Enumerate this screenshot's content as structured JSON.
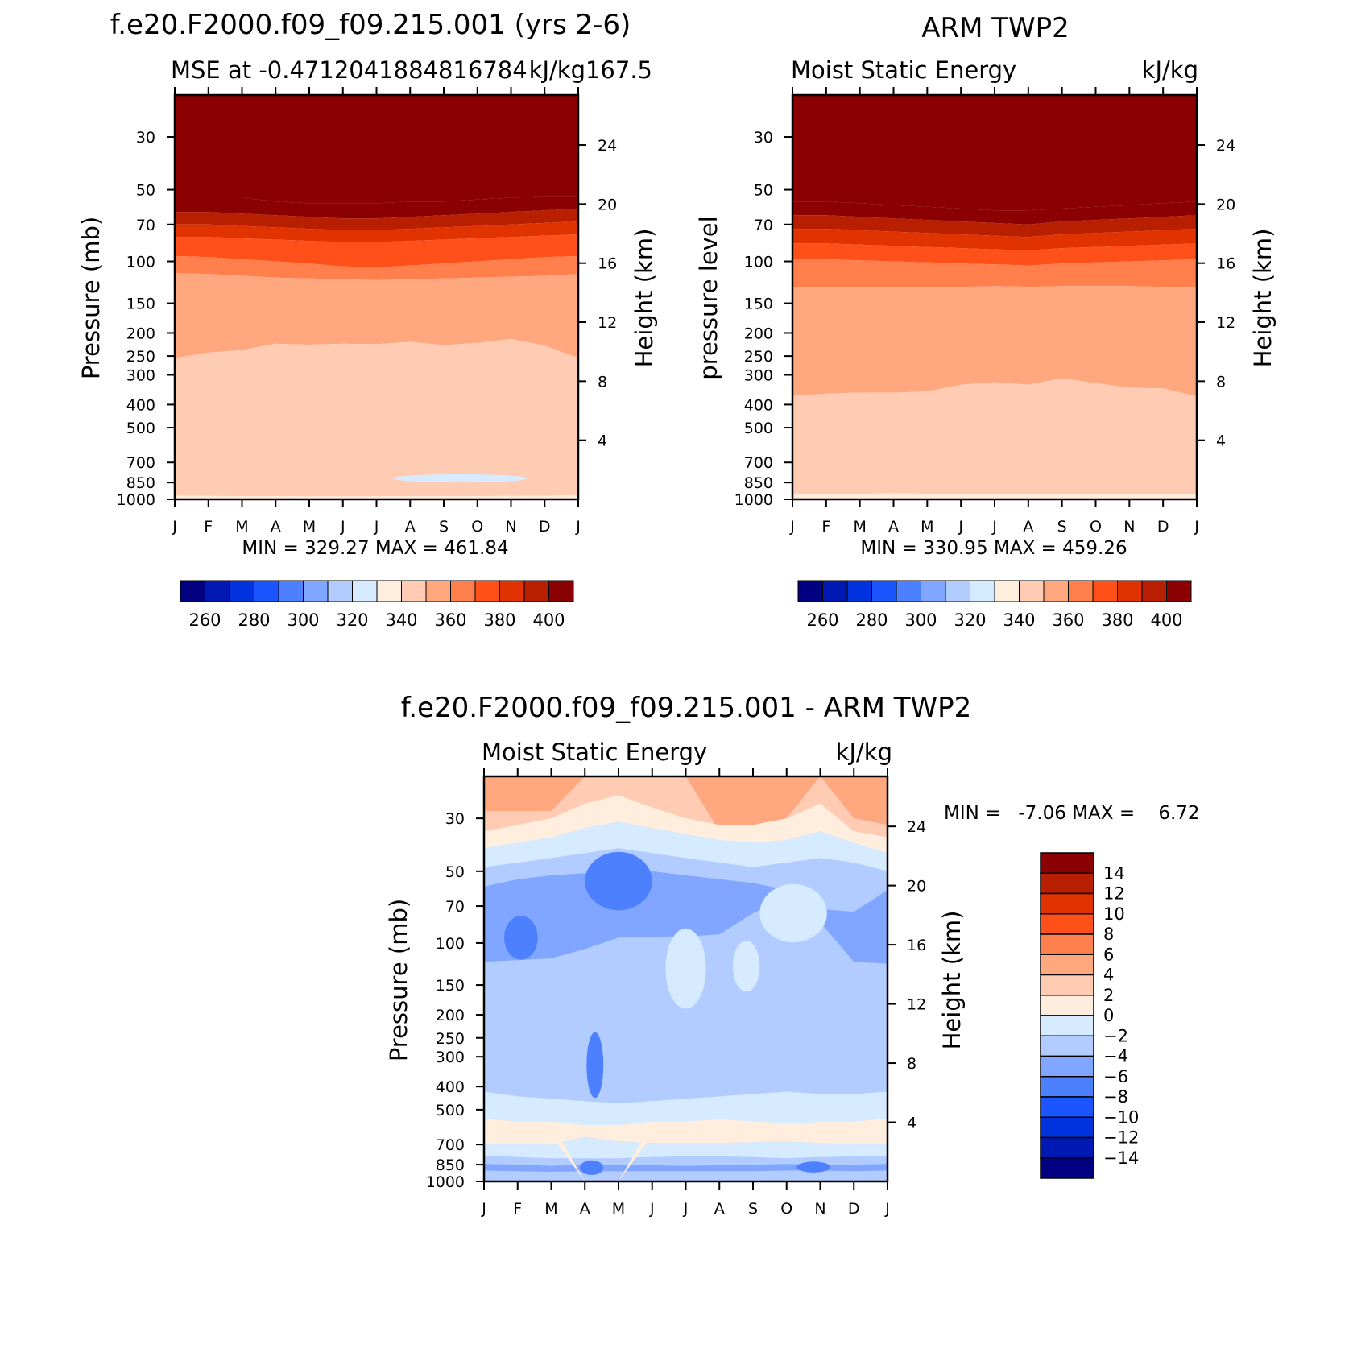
{
  "colors": {
    "seq_lut": [
      "#000080",
      "#0019b3",
      "#0033dd",
      "#1a55ff",
      "#4d80ff",
      "#80a6ff",
      "#b3ccff",
      "#d6ebff",
      "#ffeedd",
      "#ffccb3",
      "#ffa880",
      "#ff7f4d",
      "#ff501a",
      "#e03300",
      "#b81e00",
      "#8b0000"
    ],
    "diff_lut": [
      "#000080",
      "#0019b3",
      "#0033dd",
      "#1a55ff",
      "#4d80ff",
      "#80a6ff",
      "#b3ccff",
      "#d6ebff",
      "#ffeedd",
      "#ffccb3",
      "#ffa880",
      "#ff7f4d",
      "#ff501a",
      "#e03300",
      "#b81e00",
      "#8b0000"
    ]
  },
  "bottom": {
    "title": "f.e20.F2000.f09_f09.215.001 - ARM TWP2"
  },
  "chart_data": [
    {
      "type": "heatmap",
      "id": "model",
      "title": "f.e20.F2000.f09_f09.215.001 (yrs 2-6)",
      "subtitle_left": "MSE at -0.4712041884816784",
      "subtitle_right_overlap": "kJ/kg167.5",
      "ylabel": "Pressure (mb)",
      "y2label": "Height (km)",
      "months": [
        "J",
        "F",
        "M",
        "A",
        "M",
        "J",
        "J",
        "A",
        "S",
        "O",
        "N",
        "D",
        "J"
      ],
      "p_ticks": [
        30,
        50,
        70,
        100,
        150,
        200,
        250,
        300,
        400,
        500,
        700,
        850,
        1000
      ],
      "height_ticks": [
        24,
        20,
        16,
        12,
        8,
        4
      ],
      "stats": "MIN = 329.27 MAX = 461.84",
      "colorbar_labels": [
        "260",
        "280",
        "300",
        "320",
        "340",
        "360",
        "380",
        "400"
      ],
      "contour_levels": [
        250,
        260,
        270,
        280,
        290,
        300,
        310,
        320,
        330,
        340,
        350,
        360,
        370,
        380,
        390,
        400
      ],
      "boundaries": {
        "400": [
          54,
          54,
          54,
          56,
          57,
          57,
          57,
          56,
          56,
          55,
          54,
          53,
          53
        ],
        "390": [
          62,
          62,
          63,
          64,
          65,
          66,
          66,
          65,
          64,
          63,
          62,
          61,
          60
        ],
        "380": [
          70,
          70,
          71,
          72,
          73,
          74,
          74,
          73,
          72,
          71,
          70,
          69,
          68
        ],
        "370": [
          79,
          79,
          80,
          81,
          82,
          83,
          83,
          82,
          81,
          80,
          79,
          78,
          77
        ],
        "360": [
          95,
          96,
          98,
          100,
          102,
          105,
          106,
          104,
          102,
          100,
          98,
          96,
          95
        ],
        "350": [
          112,
          113,
          115,
          117,
          118,
          119,
          120,
          119,
          118,
          117,
          116,
          115,
          113
        ],
        "340": [
          255,
          242,
          236,
          222,
          224,
          222,
          223,
          218,
          225,
          220,
          212,
          226,
          255
        ],
        "330": [
          965,
          968,
          970,
          970,
          972,
          972,
          972,
          970,
          970,
          970,
          968,
          966,
          960
        ]
      },
      "patches": [
        {
          "level": 320,
          "month_range": [
            6.5,
            10.5
          ],
          "p_range": [
            785,
            850
          ]
        }
      ]
    },
    {
      "type": "heatmap",
      "id": "obs",
      "title": "ARM TWP2",
      "subtitle_left": "Moist Static Energy",
      "subtitle_right": "kJ/kg",
      "ylabel": "pressure level",
      "y2label": "Height (km)",
      "months": [
        "J",
        "F",
        "M",
        "A",
        "M",
        "J",
        "J",
        "A",
        "S",
        "O",
        "N",
        "D",
        "J"
      ],
      "p_ticks": [
        30,
        50,
        70,
        100,
        150,
        200,
        250,
        300,
        400,
        500,
        700,
        850,
        1000
      ],
      "height_ticks": [
        24,
        20,
        16,
        12,
        8,
        4
      ],
      "stats": "MIN = 330.95 MAX = 459.26",
      "colorbar_labels": [
        "260",
        "280",
        "300",
        "320",
        "340",
        "360",
        "380",
        "400"
      ],
      "contour_levels": [
        250,
        260,
        270,
        280,
        290,
        300,
        310,
        320,
        330,
        340,
        350,
        360,
        370,
        380,
        390,
        400
      ],
      "boundaries": {
        "400": [
          56,
          56,
          57,
          58,
          59,
          60,
          61,
          61,
          60,
          59,
          58,
          57,
          56
        ],
        "390": [
          64,
          64,
          65,
          66,
          67,
          68,
          69,
          70,
          68,
          67,
          66,
          65,
          64
        ],
        "380": [
          73,
          73,
          74,
          75,
          76,
          77,
          78,
          79,
          77,
          76,
          75,
          74,
          73
        ],
        "370": [
          84,
          84,
          85,
          86,
          87,
          88,
          89,
          90,
          88,
          87,
          86,
          85,
          84
        ],
        "360": [
          98,
          98,
          99,
          100,
          101,
          102,
          103,
          104,
          102,
          101,
          100,
          99,
          98
        ],
        "350": [
          128,
          128,
          128,
          128,
          128,
          128,
          127,
          128,
          127,
          127,
          127,
          128,
          128
        ],
        "340": [
          368,
          360,
          356,
          357,
          352,
          330,
          322,
          330,
          310,
          325,
          340,
          342,
          370
        ],
        "330": [
          955,
          950,
          948,
          945,
          948,
          950,
          950,
          950,
          950,
          950,
          950,
          948,
          955
        ]
      },
      "patches": []
    },
    {
      "type": "heatmap",
      "id": "difference",
      "title": "f.e20.F2000.f09_f09.215.001 - ARM TWP2",
      "subtitle_left": "Moist Static Energy",
      "subtitle_right": "kJ/kg",
      "ylabel": "Pressure (mb)",
      "y2label": "Height (km)",
      "months": [
        "J",
        "F",
        "M",
        "A",
        "M",
        "J",
        "J",
        "A",
        "S",
        "O",
        "N",
        "D",
        "J"
      ],
      "p_ticks": [
        30,
        50,
        70,
        100,
        150,
        200,
        250,
        300,
        400,
        500,
        700,
        850,
        1000
      ],
      "height_ticks": [
        24,
        20,
        16,
        12,
        8,
        4
      ],
      "stats_label": "MIN =   -7.06 MAX =    6.72",
      "colorbar_labels": [
        "14",
        "12",
        "10",
        "8",
        "6",
        "4",
        "2",
        "0",
        "-2",
        "-4",
        "-6",
        "-8",
        "-10",
        "-12",
        "-14"
      ],
      "background_level": -4,
      "bands": [
        {
          "level": 4,
          "top": [
            20,
            20,
            20,
            20,
            20,
            20,
            20,
            20,
            20,
            20,
            20,
            20,
            20
          ],
          "bottom": [
            28,
            28,
            28,
            20,
            20,
            20,
            20,
            34,
            34,
            30,
            20,
            30,
            32
          ]
        },
        {
          "level": 2,
          "top": [
            28,
            28,
            28,
            20,
            20,
            20,
            20,
            34,
            34,
            30,
            20,
            30,
            32
          ],
          "bottom": [
            34,
            32,
            30,
            26,
            24,
            27,
            30,
            32,
            32,
            30,
            26,
            34,
            36
          ]
        },
        {
          "level": 0,
          "top": [
            34,
            32,
            30,
            26,
            24,
            27,
            30,
            32,
            32,
            30,
            26,
            34,
            36
          ],
          "bottom": [
            40,
            38,
            36,
            33,
            31,
            33,
            35,
            37,
            38,
            37,
            34,
            38,
            42
          ]
        },
        {
          "level": -2,
          "top": [
            40,
            38,
            36,
            33,
            31,
            33,
            35,
            37,
            38,
            37,
            34,
            38,
            42
          ],
          "bottom": [
            48,
            46,
            44,
            42,
            40,
            42,
            44,
            46,
            48,
            46,
            44,
            46,
            50
          ]
        },
        {
          "level": -6,
          "top": [
            58,
            54,
            52,
            51,
            50,
            50,
            52,
            54,
            56,
            60,
            72,
            74,
            60
          ],
          "bottom": [
            120,
            118,
            116,
            106,
            95,
            95,
            94,
            92,
            75,
            65,
            82,
            120,
            122
          ]
        },
        {
          "level": 0,
          "top": [
            545,
            560,
            560,
            580,
            580,
            560,
            560,
            560,
            560,
            580,
            560,
            560,
            545
          ],
          "bottom": [
            700,
            700,
            700,
            650,
            680,
            690,
            690,
            690,
            685,
            680,
            690,
            700,
            700
          ]
        },
        {
          "level": -2,
          "top": [
            420,
            440,
            450,
            460,
            470,
            460,
            450,
            440,
            430,
            420,
            430,
            430,
            420
          ],
          "bottom": [
            545,
            560,
            560,
            580,
            580,
            560,
            560,
            560,
            560,
            580,
            560,
            560,
            545
          ]
        },
        {
          "level": -2,
          "top": [
            700,
            700,
            700,
            650,
            680,
            690,
            690,
            690,
            685,
            680,
            690,
            700,
            700
          ],
          "bottom": [
            780,
            790,
            800,
            800,
            800,
            790,
            785,
            785,
            790,
            800,
            790,
            785,
            780
          ]
        },
        {
          "level": -4,
          "top": [
            780,
            790,
            800,
            800,
            800,
            790,
            785,
            785,
            790,
            800,
            790,
            785,
            780
          ],
          "bottom": [
            1000,
            1000,
            1000,
            1000,
            1000,
            1000,
            1000,
            1000,
            1000,
            1000,
            1000,
            1000,
            1000
          ]
        },
        {
          "level": -6,
          "top": [
            845,
            850,
            860,
            850,
            850,
            855,
            860,
            855,
            850,
            845,
            850,
            850,
            845
          ],
          "bottom": [
            900,
            905,
            910,
            905,
            905,
            905,
            905,
            905,
            905,
            900,
            900,
            905,
            900
          ]
        },
        {
          "level": 0,
          "top": [
            555,
            560,
            568,
            1000,
            1000,
            570,
            560,
            550,
            560,
            570,
            570,
            560,
            555
          ],
          "bottom": [
            660,
            650,
            640,
            1000,
            1000,
            640,
            650,
            655,
            650,
            640,
            640,
            650,
            660
          ]
        }
      ],
      "patches": [
        {
          "level": -8,
          "month": 4,
          "month_half": 1.0,
          "p_center": 55,
          "p_half": 0.08
        },
        {
          "level": -8,
          "month": 1.1,
          "month_half": 0.5,
          "p_center": 95,
          "p_half": 0.06
        },
        {
          "level": -8,
          "month": 3.3,
          "month_half": 0.25,
          "p_center": 325,
          "p_half": 0.09
        },
        {
          "level": -2,
          "month": 6.0,
          "month_half": 0.6,
          "p_center": 128,
          "p_half": 0.11
        },
        {
          "level": -2,
          "month": 7.8,
          "month_half": 0.4,
          "p_center": 125,
          "p_half": 0.07
        },
        {
          "level": -2,
          "month": 9.2,
          "month_half": 1.0,
          "p_center": 75,
          "p_half": 0.08
        },
        {
          "level": -8,
          "month": 3.2,
          "month_half": 0.35,
          "p_center": 875,
          "p_half": 0.02
        },
        {
          "level": -8,
          "month": 9.8,
          "month_half": 0.5,
          "p_center": 870,
          "p_half": 0.015
        }
      ]
    }
  ]
}
